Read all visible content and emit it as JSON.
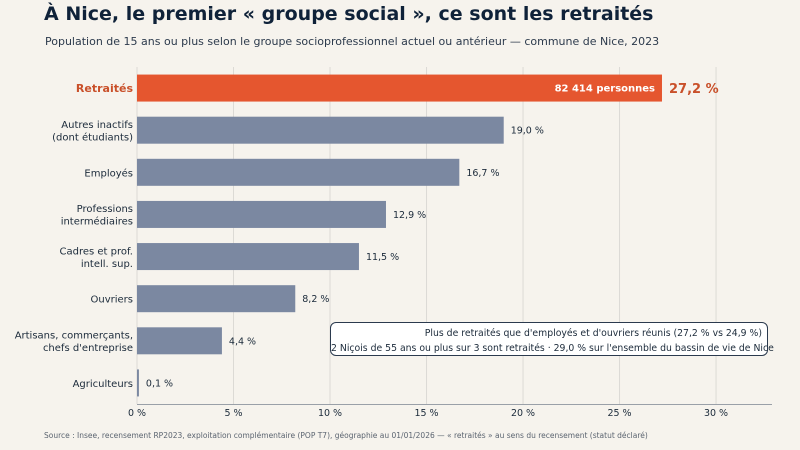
{
  "title": "À Nice, le premier « groupe social », ce sont les retraités",
  "subtitle": "Population de 15 ans ou plus selon le groupe socioprofessionnel actuel ou antérieur — commune de Nice, 2023",
  "source": "Source : Insee, recensement RP2023, exploitation complémentaire (POP T7), géographie au 01/01/2026 — « retraités » au sens du recensement (statut déclaré)",
  "callout": {
    "line1": "Plus de retraités que d'employés et d'ouvriers réunis (27,2 % vs 24,9 %)",
    "line2": "2 Niçois de 55 ans ou plus sur 3 sont retraités · 29,0 % sur l'ensemble du bassin de vie de Nice"
  },
  "colors": {
    "highlight": "#e5562f",
    "highlight_text": "#c9502a",
    "bar": "#7b88a1",
    "grid": "#dcdad5",
    "axis": "#9aa0a8"
  },
  "chart_data": {
    "type": "bar",
    "orientation": "horizontal",
    "categories": [
      [
        "Retraités"
      ],
      [
        "Autres inactifs",
        "(dont étudiants)"
      ],
      [
        "Employés"
      ],
      [
        "Professions",
        "intermédiaires"
      ],
      [
        "Cadres et prof.",
        "intell. sup."
      ],
      [
        "Ouvriers"
      ],
      [
        "Artisans, commerçants,",
        "chefs d'entreprise"
      ],
      [
        "Agriculteurs"
      ]
    ],
    "values": [
      27.2,
      19.0,
      16.7,
      12.9,
      11.5,
      8.2,
      4.4,
      0.1
    ],
    "value_labels": [
      "27,2 %",
      "19,0 %",
      "16,7 %",
      "12,9 %",
      "11,5 %",
      "8,2 %",
      "4,4 %",
      "0,1 %"
    ],
    "highlight_index": 0,
    "highlight_inner_label": "82 414 personnes",
    "xlim": [
      0,
      32.9
    ],
    "xticks": [
      0,
      5,
      10,
      15,
      20,
      25,
      30
    ],
    "xtick_labels": [
      "0 %",
      "5 %",
      "10 %",
      "15 %",
      "20 %",
      "25 %",
      "30 %"
    ],
    "grid": true,
    "xlabel": "",
    "ylabel": ""
  }
}
